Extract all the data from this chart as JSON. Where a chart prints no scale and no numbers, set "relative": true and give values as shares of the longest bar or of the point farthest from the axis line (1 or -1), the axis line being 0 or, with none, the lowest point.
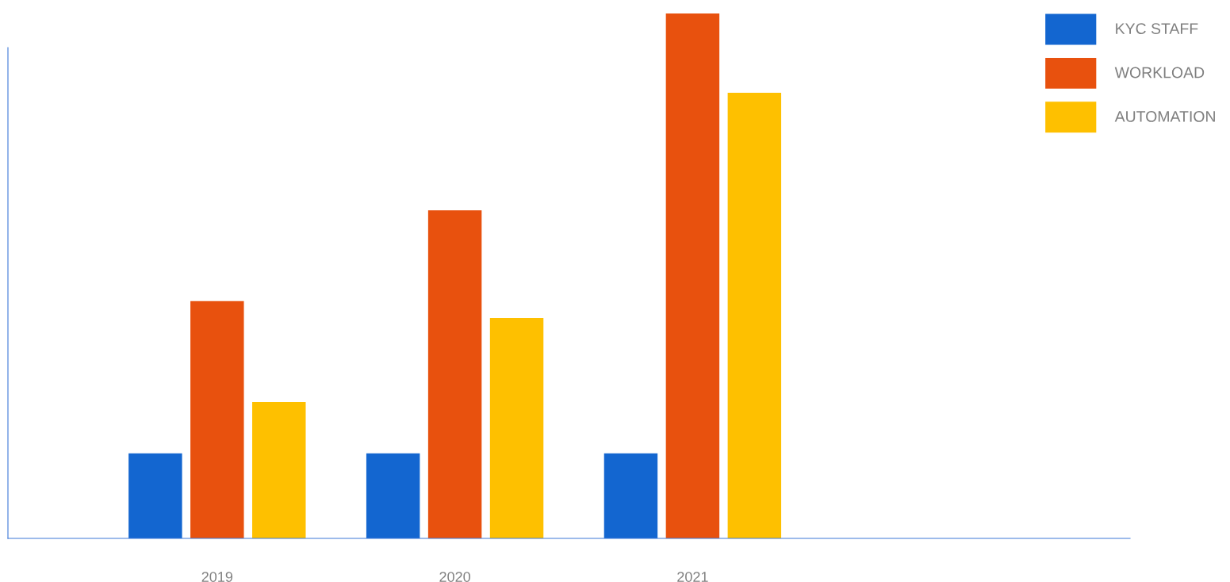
{
  "chart_data": {
    "type": "bar",
    "relative": true,
    "categories": [
      "2019",
      "2020",
      "2021"
    ],
    "series": [
      {
        "name": "KYC STAFF",
        "color": "#1366d0",
        "values": [
          0.162,
          0.162,
          0.162
        ]
      },
      {
        "name": "WORKLOAD",
        "color": "#e8510e",
        "values": [
          0.452,
          0.625,
          1.0
        ]
      },
      {
        "name": "AUTOMATION",
        "color": "#fec000",
        "values": [
          0.26,
          0.42,
          0.849
        ]
      }
    ],
    "legend": "top right",
    "grid": false
  }
}
